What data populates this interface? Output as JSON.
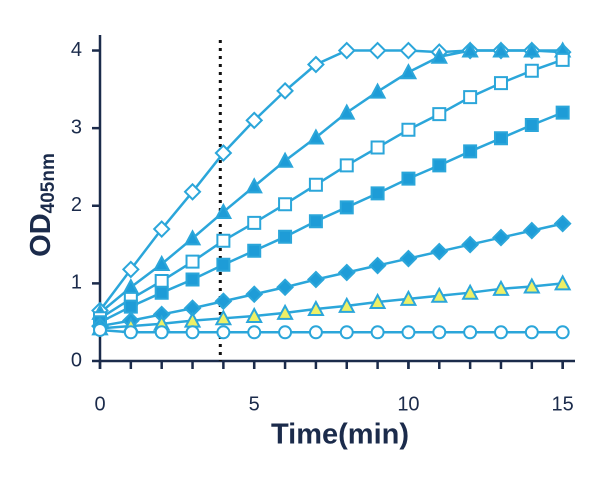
{
  "chart_data": {
    "type": "line",
    "x_label": "Time(min)",
    "y_label": "OD",
    "y_label_subscript": "405nm",
    "x": [
      0,
      1,
      2,
      3,
      4,
      5,
      6,
      7,
      8,
      9,
      10,
      11,
      12,
      13,
      14,
      15
    ],
    "series": [
      {
        "color": "#2ba6da",
        "marker": "diamond",
        "marker_fill": "#ffffff",
        "values": [
          0.65,
          1.18,
          1.7,
          2.18,
          2.68,
          3.1,
          3.48,
          3.82,
          4.0,
          4.0,
          4.0,
          3.98,
          4.0,
          4.0,
          4.0,
          3.98
        ]
      },
      {
        "color": "#2ba6da",
        "marker": "triangle",
        "marker_fill": "#1e9cd7",
        "values": [
          0.62,
          0.95,
          1.25,
          1.58,
          1.92,
          2.25,
          2.58,
          2.88,
          3.2,
          3.47,
          3.72,
          3.92,
          4.0,
          4.0,
          4.0,
          4.0
        ]
      },
      {
        "color": "#2ba6da",
        "marker": "square",
        "marker_fill": "#ffffff",
        "values": [
          0.55,
          0.8,
          1.03,
          1.28,
          1.55,
          1.78,
          2.02,
          2.27,
          2.52,
          2.75,
          2.98,
          3.18,
          3.4,
          3.58,
          3.74,
          3.88
        ]
      },
      {
        "color": "#2ba6da",
        "marker": "square",
        "marker_fill": "#1e9cd7",
        "values": [
          0.5,
          0.7,
          0.88,
          1.05,
          1.24,
          1.42,
          1.6,
          1.8,
          1.98,
          2.16,
          2.35,
          2.52,
          2.7,
          2.87,
          3.04,
          3.2
        ]
      },
      {
        "color": "#2ba6da",
        "marker": "diamond",
        "marker_fill": "#1e9cd7",
        "values": [
          0.45,
          0.52,
          0.6,
          0.68,
          0.77,
          0.86,
          0.95,
          1.05,
          1.14,
          1.23,
          1.32,
          1.41,
          1.5,
          1.59,
          1.68,
          1.77
        ]
      },
      {
        "color": "#2ba6da",
        "marker": "triangle",
        "marker_fill": "#eef066",
        "values": [
          0.42,
          0.45,
          0.48,
          0.52,
          0.55,
          0.58,
          0.62,
          0.67,
          0.71,
          0.76,
          0.8,
          0.84,
          0.88,
          0.93,
          0.96,
          1.0
        ]
      },
      {
        "color": "#2ba6da",
        "marker": "circle",
        "marker_fill": "#ffffff",
        "values": [
          0.4,
          0.37,
          0.37,
          0.37,
          0.37,
          0.37,
          0.37,
          0.37,
          0.37,
          0.37,
          0.37,
          0.37,
          0.37,
          0.37,
          0.37,
          0.37
        ]
      }
    ],
    "xlim": [
      0,
      15.4
    ],
    "ylim": [
      0,
      4.2
    ],
    "xticks": [
      0,
      5,
      10,
      15
    ],
    "xminorticks": [
      0,
      1,
      2,
      3,
      4,
      5,
      6,
      7,
      8,
      9,
      10,
      11,
      12,
      13,
      14,
      15
    ],
    "yticks": [
      0,
      1,
      2,
      3,
      4
    ],
    "vline": 3.9,
    "axis_color": "#1b2b4b",
    "grid": false
  }
}
